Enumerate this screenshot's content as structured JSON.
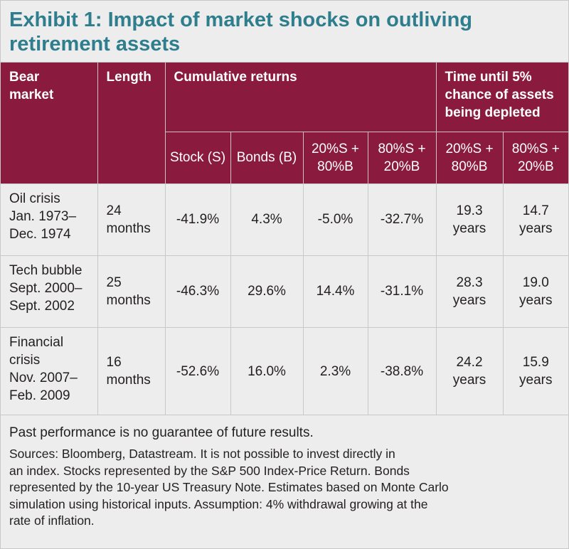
{
  "title": {
    "line1": "Exhibit 1: Impact of market shocks on outliving",
    "line2": "retirement assets"
  },
  "header": {
    "bear_market": [
      "Bear",
      "market"
    ],
    "length": "Length",
    "cumulative_returns": "Cumulative returns",
    "time_until": [
      "Time until 5%",
      "chance of assets",
      "being depleted"
    ],
    "sub": {
      "stock": "Stock (S)",
      "bonds": "Bonds (B)",
      "mix_20_80": [
        "20%S +",
        "80%B"
      ],
      "mix_80_20": [
        "80%S +",
        "20%B"
      ],
      "time_20_80": [
        "20%S +",
        "80%B"
      ],
      "time_80_20": [
        "80%S +",
        "20%B"
      ]
    }
  },
  "rows": [
    {
      "name": [
        "Oil crisis"
      ],
      "dates": [
        "Jan. 1973–",
        "Dec. 1974"
      ],
      "length": [
        "24",
        "months"
      ],
      "stock": "-41.9%",
      "bonds": "4.3%",
      "mix_20_80": "-5.0%",
      "mix_80_20": "-32.7%",
      "time_20_80": [
        "19.3",
        "years"
      ],
      "time_80_20": [
        "14.7",
        "years"
      ]
    },
    {
      "name": [
        "Tech bubble"
      ],
      "dates": [
        "Sept. 2000–",
        "Sept. 2002"
      ],
      "length": [
        "25",
        "months"
      ],
      "stock": "-46.3%",
      "bonds": "29.6%",
      "mix_20_80": "14.4%",
      "mix_80_20": "-31.1%",
      "time_20_80": [
        "28.3",
        "years"
      ],
      "time_80_20": [
        "19.0",
        "years"
      ]
    },
    {
      "name": [
        "Financial",
        "crisis"
      ],
      "dates": [
        "Nov. 2007–",
        "Feb. 2009"
      ],
      "length": [
        "16",
        "months"
      ],
      "stock": "-52.6%",
      "bonds": "16.0%",
      "mix_20_80": "2.3%",
      "mix_80_20": "-38.8%",
      "time_20_80": [
        "24.2",
        "years"
      ],
      "time_80_20": [
        "15.9",
        "years"
      ]
    }
  ],
  "notes": {
    "disclaimer": "Past performance is no guarantee of future results.",
    "sources": [
      "Sources: Bloomberg, Datastream. It is not possible to invest directly in",
      "an index. Stocks represented by the S&P 500 Index-Price Return. Bonds",
      "represented by the 10-year US Treasury Note. Estimates based on Monte Carlo",
      "simulation using historical inputs. Assumption: 4% withdrawal growing at the",
      "rate of inflation."
    ]
  }
}
